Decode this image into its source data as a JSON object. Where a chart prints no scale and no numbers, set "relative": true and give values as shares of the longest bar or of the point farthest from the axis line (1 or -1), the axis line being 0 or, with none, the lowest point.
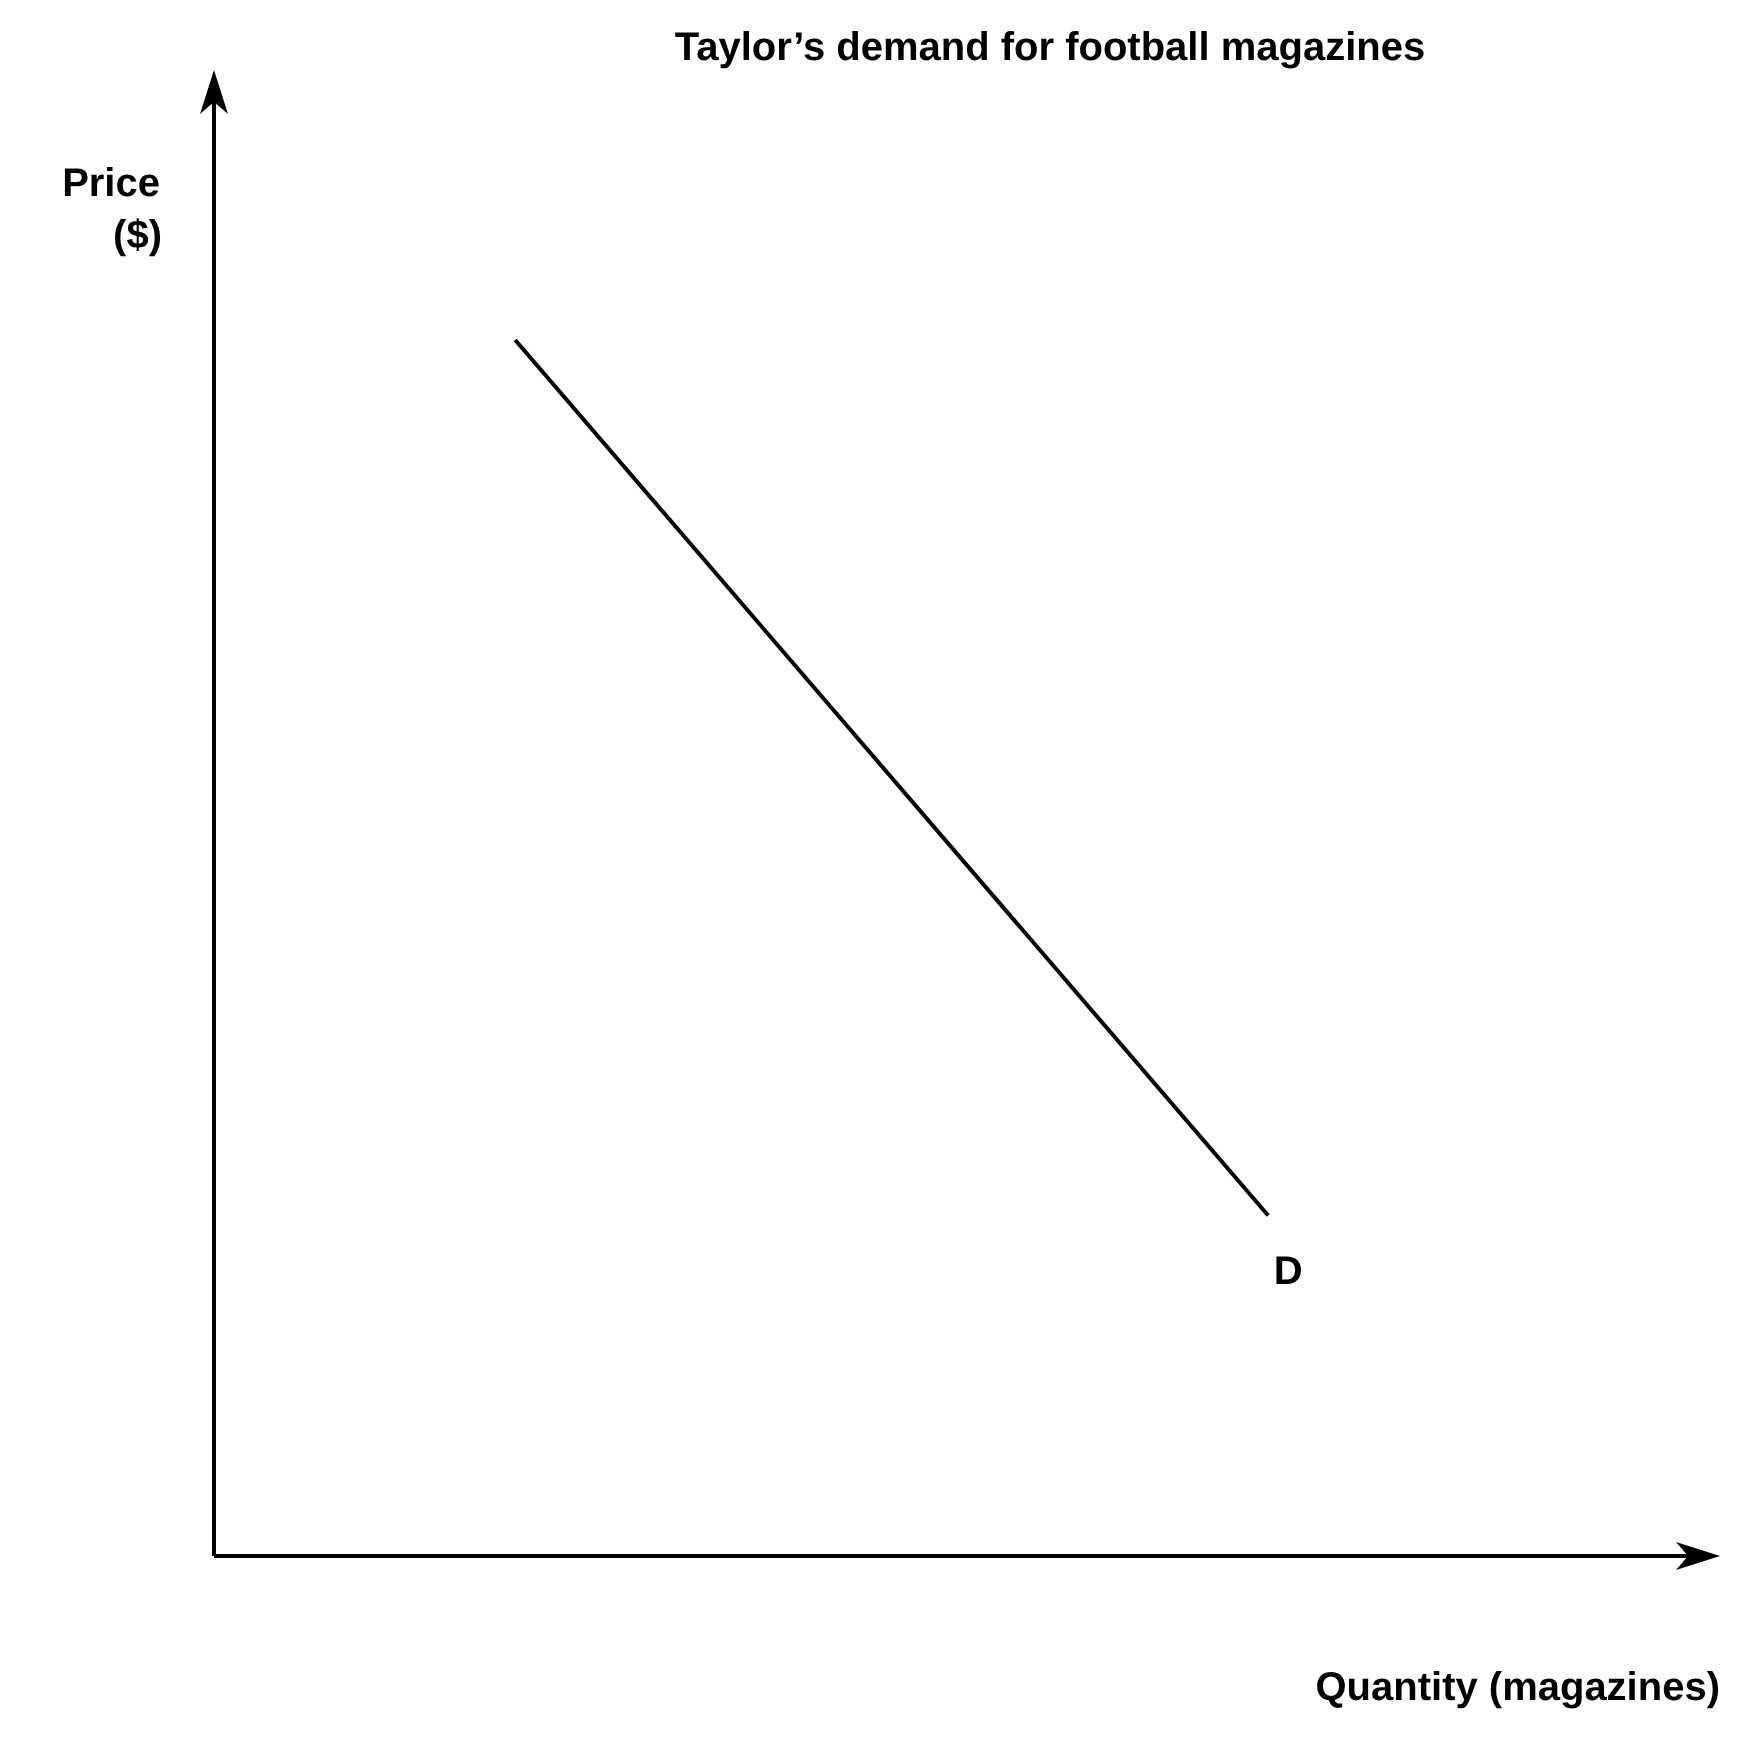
{
  "chart_data": {
    "type": "line",
    "title": "Taylor’s demand for football magazines",
    "xlabel": "Quantity (magazines)",
    "ylabel": "Price ($)",
    "relative": true,
    "marker": "none",
    "categories": [
      null,
      null,
      null,
      null,
      null,
      null,
      null,
      null,
      null,
      null,
      null,
      null,
      null,
      null,
      null,
      null,
      null,
      null,
      null,
      null,
      null
    ],
    "series": [
      {
        "name": "D",
        "color": "#000000",
        "values": [
          null,
          null,
          null,
          null,
          1,
          null,
          null,
          null,
          null,
          null,
          null,
          null,
          null,
          null,
          0.28,
          null,
          null,
          null,
          null,
          null,
          null
        ]
      }
    ]
  }
}
